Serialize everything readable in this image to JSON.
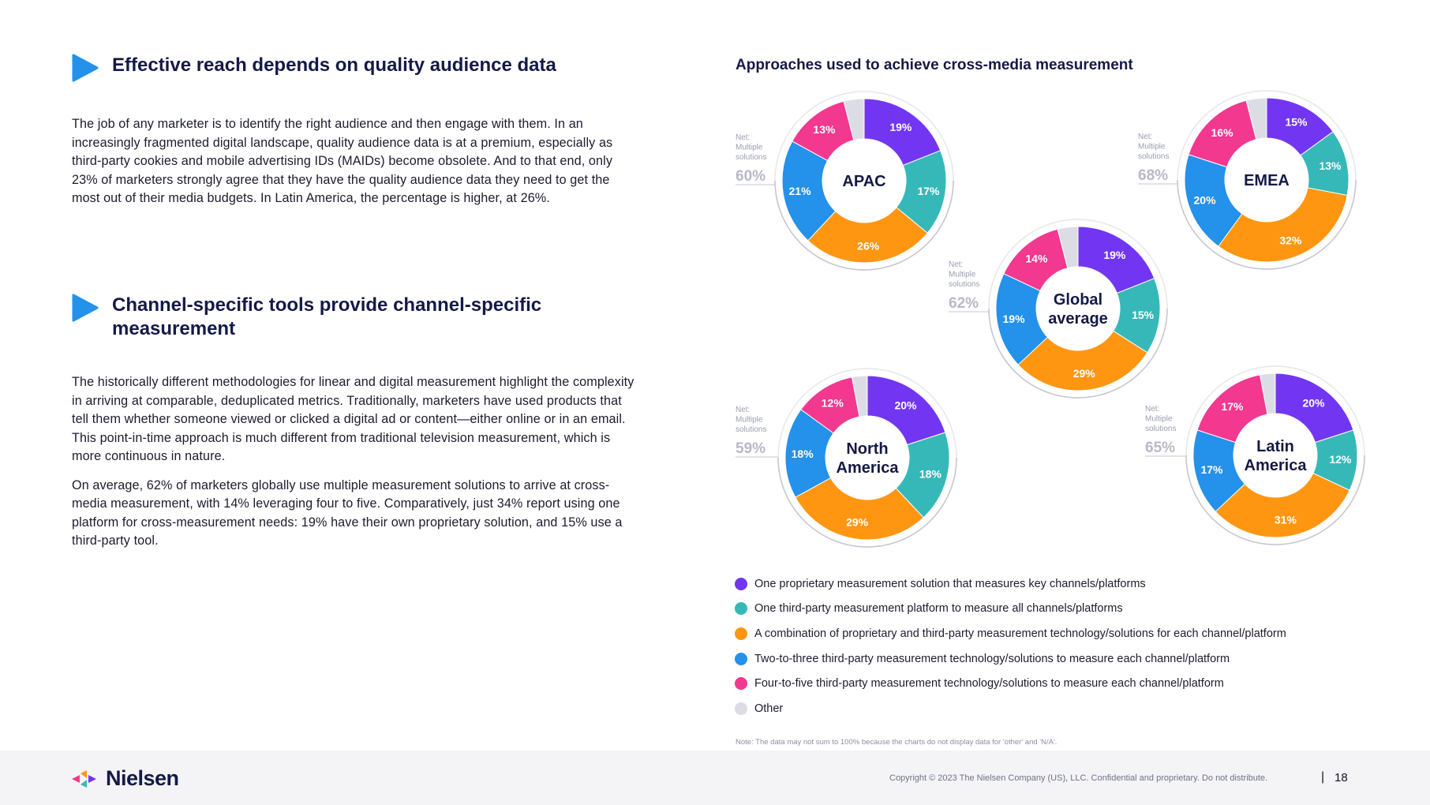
{
  "section1": {
    "heading": "Effective reach depends on quality audience data",
    "paragraphs": [
      "The job of any marketer is to identify the right audience and then engage with them. In an increasingly fragmented digital landscape, quality audience data is at a premium, especially as third-party cookies and mobile advertising IDs (MAIDs) become obsolete. And to that end, only 23% of marketers strongly agree that they have the quality audience data they need to get the most out of their media budgets. In Latin America, the percentage is higher, at 26%."
    ]
  },
  "section2": {
    "heading": "Channel-specific tools provide channel-specific measurement",
    "paragraphs": [
      "The historically different methodologies for linear and digital measurement highlight the complexity in arriving at comparable, deduplicated metrics. Traditionally, marketers have used products that tell them whether someone viewed or clicked a digital ad or content—either online or in an email. This point-in-time approach is much different from traditional television measurement, which is more continuous in nature.",
      "On average, 62% of marketers globally use multiple measurement solutions to arrive at cross-media measurement, with 14% leveraging four to five. Comparatively, just 34% report using one platform for cross-measurement needs: 19% have their own proprietary solution, and 15% use a third-party tool."
    ]
  },
  "chart_data": {
    "type": "pie",
    "title": "Approaches used to achieve cross-media measurement",
    "net_label": [
      "Net:",
      "Multiple",
      "solutions"
    ],
    "categories": [
      "One proprietary measurement solution that measures key channels/platforms",
      "One third-party measurement platform to measure all channels/platforms",
      "A combination of proprietary and third-party measurement technology/solutions for each channel/platform",
      "Two-to-three third-party measurement technology/solutions to measure each channel/platform",
      "Four-to-five third-party measurement technology/solutions to measure each channel/platform",
      "Other"
    ],
    "colors": [
      "#7236f2",
      "#36b8b8",
      "#ff9612",
      "#2491ea",
      "#f2388f",
      "#dcdde4"
    ],
    "charts": [
      {
        "name": [
          "APAC"
        ],
        "net": "60%",
        "values": [
          19,
          17,
          26,
          21,
          13
        ],
        "labels": [
          "19%",
          "17%",
          "26%",
          "21%",
          "13%"
        ]
      },
      {
        "name": [
          "EMEA"
        ],
        "net": "68%",
        "values": [
          15,
          13,
          32,
          20,
          16
        ],
        "labels": [
          "15%",
          "13%",
          "32%",
          "20%",
          "16%"
        ]
      },
      {
        "name": [
          "Global",
          "average"
        ],
        "net": "62%",
        "values": [
          19,
          15,
          29,
          19,
          14
        ],
        "labels": [
          "19%",
          "15%",
          "29%",
          "19%",
          "14%"
        ]
      },
      {
        "name": [
          "North",
          "America"
        ],
        "net": "59%",
        "values": [
          20,
          18,
          29,
          18,
          12
        ],
        "labels": [
          "20%",
          "18%",
          "29%",
          "18%",
          "12%"
        ]
      },
      {
        "name": [
          "Latin",
          "America"
        ],
        "net": "65%",
        "values": [
          20,
          12,
          31,
          17,
          17
        ],
        "labels": [
          "20%",
          "12%",
          "31%",
          "17%",
          "17%"
        ]
      }
    ],
    "note": "Note: The data may not sum to 100% because the charts do not display data for 'other' and 'N/A'."
  },
  "footer": {
    "logo_text": "Nielsen",
    "copyright": "Copyright © 2023 The Nielsen Company (US), LLC. Confidential and proprietary. Do not distribute.",
    "separator": "|",
    "page_number": "18"
  },
  "colors": {
    "heading": "#141a46",
    "play_icon": "#2491ea"
  }
}
